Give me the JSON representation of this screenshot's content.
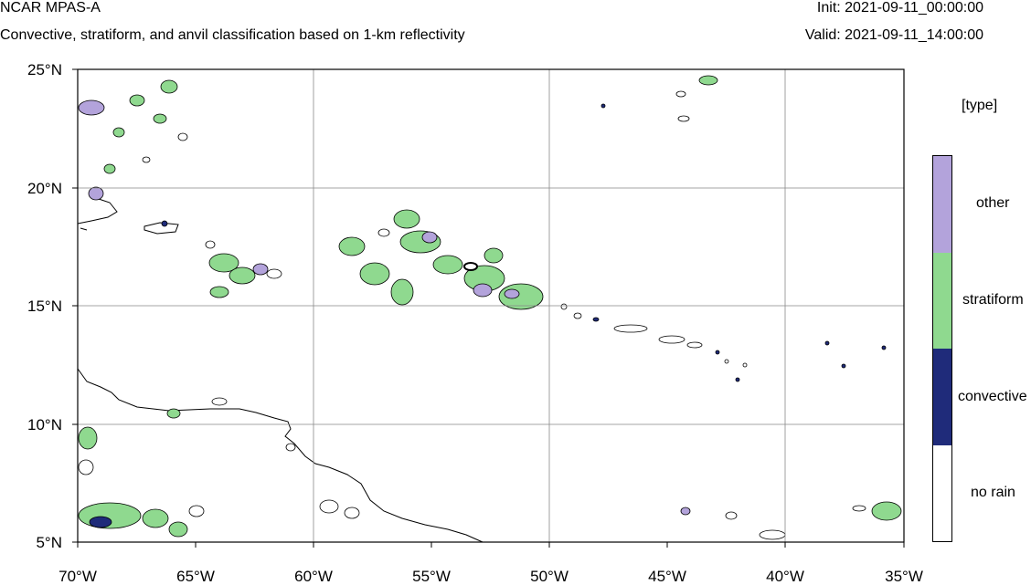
{
  "header": {
    "title": "NCAR MPAS-A",
    "subtitle": "Convective, stratiform, and anvil classification based on 1-km reflectivity",
    "init": "Init: 2021-09-11_00:00:00",
    "valid": "Valid: 2021-09-11_14:00:00"
  },
  "map": {
    "lat_labels": [
      "25°N",
      "20°N",
      "15°N",
      "10°N",
      "5°N"
    ],
    "lon_labels": [
      "70°W",
      "65°W",
      "60°W",
      "55°W",
      "50°W",
      "45°W",
      "40°W",
      "35°W"
    ]
  },
  "legend": {
    "title": "[type]",
    "items": [
      {
        "label": "other",
        "color": "#b3a3db"
      },
      {
        "label": "stratiform",
        "color": "#8fd98f"
      },
      {
        "label": "convective",
        "color": "#1f2b7a"
      },
      {
        "label": "no rain",
        "color": "#ffffff"
      }
    ]
  }
}
